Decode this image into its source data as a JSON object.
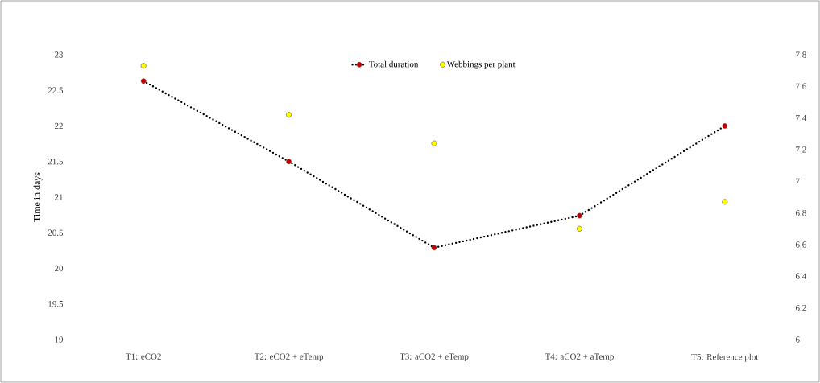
{
  "chart_data": {
    "type": "line",
    "categories": [
      "T1: eCO2",
      "T2: eCO2 + eTemp",
      "T3: aCO2  + eTemp",
      "T4: aCO2  + aTemp",
      "T5: Reference plot"
    ],
    "ylabel": "Time in days",
    "ylim": [
      19,
      23
    ],
    "yticks": [
      19,
      19.5,
      20,
      20.5,
      21,
      21.5,
      22,
      22.5,
      23
    ],
    "y2lim": [
      6,
      7.8
    ],
    "y2ticks": [
      6,
      6.2,
      6.4,
      6.6,
      6.8,
      7,
      7.2,
      7.4,
      7.6,
      7.8
    ],
    "legend": "top",
    "grid": false,
    "series": [
      {
        "name": "Total duration",
        "color": "#c00000",
        "line_style": "dotted",
        "marker": "circle",
        "values": [
          22.63,
          21.5,
          20.29,
          20.74,
          22.0
        ]
      },
      {
        "name": "Webbings per plant",
        "type": "scatter",
        "axis": "y2",
        "color": "#ffff00",
        "marker": "circle",
        "values": [
          7.73,
          7.42,
          7.24,
          6.7,
          6.87
        ]
      }
    ]
  }
}
